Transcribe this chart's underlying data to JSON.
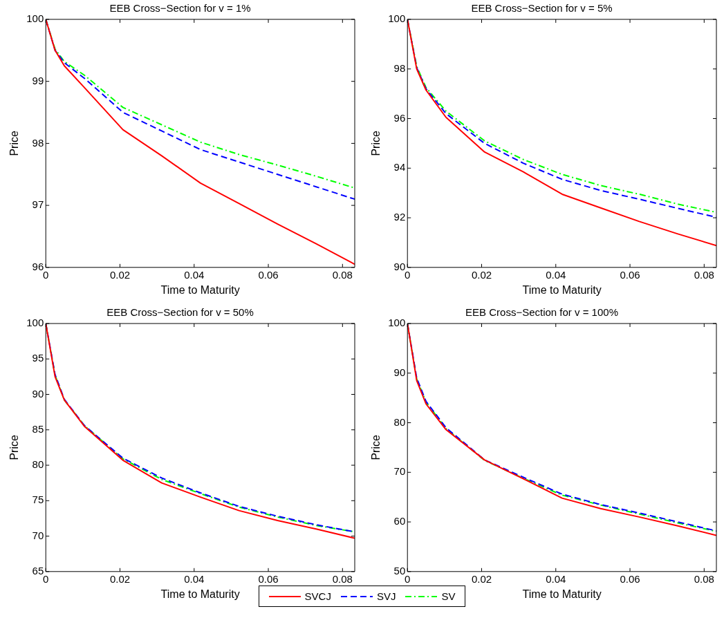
{
  "chart_data": [
    {
      "type": "line",
      "title": "EEB Cross−Section for v = 1%",
      "xlabel": "Time to Maturity",
      "ylabel": "Price",
      "x": [
        0,
        0.0025,
        0.005,
        0.0104,
        0.0208,
        0.03125,
        0.0417,
        0.0521,
        0.0625,
        0.0729,
        0.0833
      ],
      "xlim": [
        0,
        0.0833
      ],
      "xticks": [
        0,
        0.02,
        0.04,
        0.06,
        0.08
      ],
      "ylim": [
        96,
        100
      ],
      "yticks": [
        96,
        97,
        98,
        99,
        100
      ],
      "grid": false,
      "legend": "bottom",
      "marker": "none",
      "series": [
        {
          "name": "SVCJ",
          "color": "#ff0000",
          "line_style": "solid",
          "values": [
            100,
            99.5,
            99.25,
            98.9,
            98.22,
            97.8,
            97.36,
            97.03,
            96.7,
            96.38,
            96.05
          ]
        },
        {
          "name": "SVJ",
          "color": "#0000ff",
          "line_style": "dashed",
          "values": [
            100,
            99.5,
            99.3,
            99.05,
            98.5,
            98.2,
            97.9,
            97.7,
            97.5,
            97.3,
            97.1
          ]
        },
        {
          "name": "SV",
          "color": "#00ff00",
          "line_style": "dashdot",
          "values": [
            100,
            99.52,
            99.32,
            99.1,
            98.58,
            98.3,
            98.02,
            97.82,
            97.65,
            97.47,
            97.28
          ]
        }
      ]
    },
    {
      "type": "line",
      "title": "EEB Cross−Section for v = 5%",
      "xlabel": "Time to Maturity",
      "ylabel": "Price",
      "x": [
        0,
        0.0025,
        0.005,
        0.0104,
        0.0208,
        0.03125,
        0.0417,
        0.0521,
        0.0625,
        0.0729,
        0.0833
      ],
      "xlim": [
        0,
        0.0833
      ],
      "xticks": [
        0,
        0.02,
        0.04,
        0.06,
        0.08
      ],
      "ylim": [
        90,
        100
      ],
      "yticks": [
        90,
        92,
        94,
        96,
        98,
        100
      ],
      "grid": false,
      "legend": false,
      "marker": "none",
      "series": [
        {
          "color": "#ff0000",
          "line_style": "solid",
          "values": [
            100,
            98.0,
            97.15,
            96.05,
            94.65,
            93.85,
            92.95,
            92.4,
            91.85,
            91.35,
            90.88
          ]
        },
        {
          "color": "#0000ff",
          "line_style": "dashed",
          "values": [
            100,
            98.05,
            97.2,
            96.2,
            95.0,
            94.2,
            93.55,
            93.1,
            92.75,
            92.38,
            92.02
          ]
        },
        {
          "color": "#00ff00",
          "line_style": "dashdot",
          "values": [
            100,
            98.1,
            97.25,
            96.3,
            95.1,
            94.35,
            93.75,
            93.3,
            92.95,
            92.55,
            92.22
          ]
        }
      ]
    },
    {
      "type": "line",
      "title": "EEB Cross−Section for v = 50%",
      "xlabel": "Time to Maturity",
      "ylabel": "Price",
      "x": [
        0,
        0.0025,
        0.005,
        0.0104,
        0.0208,
        0.03125,
        0.0417,
        0.0521,
        0.0625,
        0.0729,
        0.0833
      ],
      "xlim": [
        0,
        0.0833
      ],
      "xticks": [
        0,
        0.02,
        0.04,
        0.06,
        0.08
      ],
      "ylim": [
        65,
        100
      ],
      "yticks": [
        65,
        70,
        75,
        80,
        85,
        90,
        95,
        100
      ],
      "grid": false,
      "legend": false,
      "marker": "none",
      "series": [
        {
          "color": "#ff0000",
          "line_style": "solid",
          "values": [
            100,
            92.5,
            89.2,
            85.5,
            80.7,
            77.5,
            75.5,
            73.6,
            72.2,
            71.0,
            69.7
          ]
        },
        {
          "color": "#0000ff",
          "line_style": "dashed",
          "values": [
            100,
            92.8,
            89.3,
            85.6,
            81.0,
            78.2,
            76.1,
            74.2,
            72.8,
            71.6,
            70.6
          ]
        },
        {
          "color": "#00ff00",
          "line_style": "dashdot",
          "values": [
            100,
            92.7,
            89.2,
            85.6,
            80.9,
            78.0,
            76.0,
            74.1,
            72.7,
            71.5,
            70.6
          ]
        }
      ]
    },
    {
      "type": "line",
      "title": "EEB Cross−Section for v = 100%",
      "xlabel": "Time to Maturity",
      "ylabel": "Price",
      "x": [
        0,
        0.0025,
        0.005,
        0.0104,
        0.0208,
        0.03125,
        0.0417,
        0.0521,
        0.0625,
        0.0729,
        0.0833
      ],
      "xlim": [
        0,
        0.0833
      ],
      "xticks": [
        0,
        0.02,
        0.04,
        0.06,
        0.08
      ],
      "ylim": [
        50,
        100
      ],
      "yticks": [
        50,
        60,
        70,
        80,
        90,
        100
      ],
      "grid": false,
      "legend": false,
      "marker": "none",
      "series": [
        {
          "color": "#ff0000",
          "line_style": "solid",
          "values": [
            100,
            88.5,
            83.8,
            78.6,
            72.5,
            68.7,
            64.8,
            62.7,
            61.0,
            59.2,
            57.3
          ]
        },
        {
          "color": "#0000ff",
          "line_style": "dashed",
          "values": [
            100,
            89,
            84.3,
            79,
            72.5,
            69,
            65.6,
            63.5,
            61.8,
            60,
            58.2
          ]
        },
        {
          "color": "#00ff00",
          "line_style": "dashdot",
          "values": [
            100,
            88.8,
            84.2,
            78.8,
            72.4,
            68.8,
            65.4,
            63.4,
            61.6,
            59.8,
            58.1
          ]
        }
      ]
    }
  ]
}
